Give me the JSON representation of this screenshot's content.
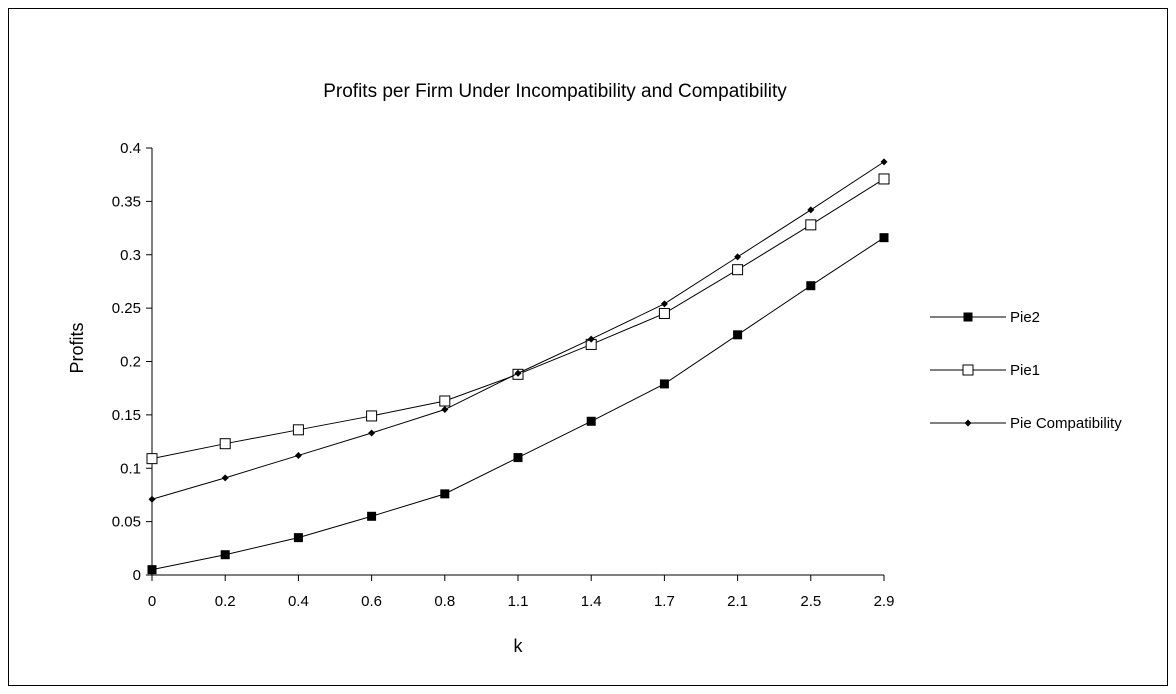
{
  "chart_data": {
    "type": "line",
    "title": "Profits per Firm Under Incompatibility and Compatibility",
    "xlabel": "k",
    "ylabel": "Profits",
    "categories": [
      "0",
      "0.2",
      "0.4",
      "0.6",
      "0.8",
      "1.1",
      "1.4",
      "1.7",
      "2.1",
      "2.5",
      "2.9"
    ],
    "ylim": [
      0,
      0.4
    ],
    "yticks": [
      "0",
      "0.05",
      "0.1",
      "0.15",
      "0.2",
      "0.25",
      "0.3",
      "0.35",
      "0.4"
    ],
    "grid": false,
    "legend_position": "right",
    "series": [
      {
        "name": "Pie2",
        "marker": "filled-square",
        "values": [
          0.005,
          0.019,
          0.035,
          0.055,
          0.076,
          0.11,
          0.144,
          0.179,
          0.225,
          0.271,
          0.316
        ]
      },
      {
        "name": "Pie1",
        "marker": "open-square",
        "values": [
          0.109,
          0.123,
          0.136,
          0.149,
          0.163,
          0.188,
          0.216,
          0.245,
          0.286,
          0.328,
          0.371
        ]
      },
      {
        "name": "Pie Compatibility",
        "marker": "diamond",
        "values": [
          0.071,
          0.091,
          0.112,
          0.133,
          0.155,
          0.189,
          0.221,
          0.254,
          0.298,
          0.342,
          0.387
        ]
      }
    ]
  }
}
